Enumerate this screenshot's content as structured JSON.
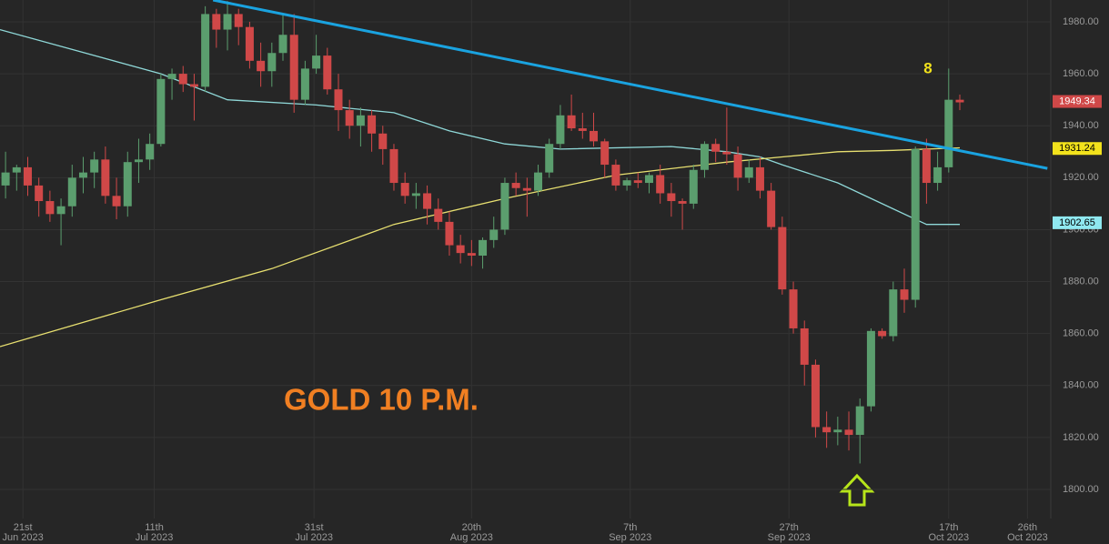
{
  "chart_data": {
    "type": "candlestick",
    "annotations": [
      {
        "text": "GOLD 10 P.M.",
        "color": "#f07f22"
      },
      {
        "text": "8",
        "color": "#f2e21c"
      }
    ],
    "open": [
      1917,
      1922,
      1924,
      1917,
      1911,
      1906,
      1909,
      1920,
      1922,
      1927,
      1913,
      1909,
      1926,
      1927,
      1933,
      1958,
      1960,
      1956,
      1955,
      1983,
      1977,
      1983,
      1978,
      1965,
      1961,
      1968,
      1975,
      1950,
      1962,
      1967,
      1954,
      1946,
      1940,
      1944,
      1937,
      1931,
      1918,
      1913,
      1914,
      1908,
      1903,
      1894,
      1891,
      1890,
      1896,
      1900,
      1918,
      1916,
      1915,
      1922,
      1933,
      1944,
      1939,
      1938,
      1934,
      1925,
      1917,
      1919,
      1918,
      1921,
      1914,
      1911,
      1910,
      1923,
      1933,
      1930,
      1929,
      1920,
      1924,
      1915,
      1901,
      1877,
      1862,
      1848,
      1824,
      1822,
      1823,
      1821,
      1832,
      1861,
      1859,
      1877,
      1873,
      1931,
      1918,
      1924,
      1950
    ],
    "high": [
      1930,
      1925,
      1928,
      1920,
      1915,
      1912,
      1925,
      1928,
      1930,
      1932,
      1920,
      1930,
      1935,
      1937,
      1960,
      1962,
      1963,
      1960,
      1986,
      1985,
      1988,
      1985,
      1980,
      1972,
      1972,
      1983,
      1983,
      1965,
      1975,
      1970,
      1960,
      1950,
      1947,
      1946,
      1940,
      1933,
      1922,
      1918,
      1917,
      1912,
      1907,
      1898,
      1896,
      1897,
      1905,
      1920,
      1922,
      1920,
      1925,
      1935,
      1948,
      1952,
      1945,
      1945,
      1935,
      1927,
      1920,
      1922,
      1922,
      1925,
      1918,
      1912,
      1925,
      1934,
      1935,
      1947,
      1932,
      1927,
      1928,
      1918,
      1905,
      1880,
      1865,
      1850,
      1830,
      1828,
      1830,
      1835,
      1862,
      1862,
      1880,
      1885,
      1932,
      1935,
      1930,
      1962,
      1952
    ],
    "low": [
      1912,
      1915,
      1913,
      1905,
      1903,
      1894,
      1905,
      1914,
      1916,
      1910,
      1904,
      1905,
      1918,
      1923,
      1932,
      1950,
      1953,
      1942,
      1953,
      1970,
      1969,
      1971,
      1962,
      1955,
      1955,
      1965,
      1945,
      1948,
      1960,
      1952,
      1938,
      1935,
      1932,
      1930,
      1925,
      1915,
      1910,
      1908,
      1902,
      1900,
      1890,
      1887,
      1886,
      1885,
      1893,
      1898,
      1913,
      1905,
      1913,
      1920,
      1931,
      1938,
      1935,
      1932,
      1920,
      1915,
      1915,
      1916,
      1914,
      1910,
      1905,
      1900,
      1908,
      1920,
      1926,
      1925,
      1915,
      1918,
      1912,
      1900,
      1875,
      1860,
      1840,
      1820,
      1816,
      1817,
      1815,
      1810,
      1830,
      1858,
      1857,
      1868,
      1870,
      1910,
      1915,
      1922,
      1946
    ],
    "close": [
      1922,
      1924,
      1917,
      1911,
      1906,
      1909,
      1920,
      1922,
      1927,
      1913,
      1909,
      1926,
      1927,
      1933,
      1958,
      1960,
      1956,
      1955,
      1983,
      1977,
      1983,
      1978,
      1965,
      1961,
      1968,
      1975,
      1950,
      1962,
      1967,
      1954,
      1946,
      1940,
      1944,
      1937,
      1931,
      1918,
      1913,
      1914,
      1908,
      1903,
      1894,
      1891,
      1890,
      1896,
      1900,
      1918,
      1916,
      1915,
      1922,
      1933,
      1944,
      1939,
      1938,
      1934,
      1925,
      1917,
      1919,
      1918,
      1921,
      1914,
      1911,
      1910,
      1923,
      1933,
      1930,
      1929,
      1920,
      1924,
      1915,
      1901,
      1877,
      1862,
      1848,
      1824,
      1822,
      1823,
      1821,
      1832,
      1861,
      1859,
      1877,
      1873,
      1931,
      1918,
      1924,
      1950,
      1949
    ],
    "up_color": "#5b9e6e",
    "down_color": "#d04848",
    "moving_averages": [
      {
        "color": "#8fd8d8",
        "x": [
          -0.5,
          14,
          20,
          28,
          35,
          40,
          45,
          50,
          60,
          65,
          68,
          70,
          75,
          80,
          83,
          86
        ],
        "values": [
          1977,
          1960,
          1950,
          1948,
          1945,
          1938,
          1933,
          1931,
          1932,
          1930,
          1928,
          1925,
          1918,
          1908,
          1902,
          1902
        ]
      },
      {
        "color": "#e8e070",
        "x": [
          -0.5,
          14,
          24,
          35,
          45,
          55,
          65,
          70,
          75,
          80,
          86
        ],
        "values": [
          1855,
          1873,
          1885,
          1902,
          1912,
          1921,
          1926,
          1928,
          1930,
          1930.5,
          1931.5
        ]
      }
    ],
    "trendline": {
      "color": "#1aa3e0",
      "x": [
        18.7,
        93.9
      ],
      "values": [
        1988.4,
        1923.6
      ]
    },
    "price_tags": [
      {
        "value": 1949.34,
        "color": "#d04848",
        "text_color": "#ffffff"
      },
      {
        "value": 1931.24,
        "color": "#f2e21c",
        "text_color": "#000000"
      },
      {
        "value": 1902.65,
        "color": "#8fe8f0",
        "text_color": "#000000"
      }
    ],
    "xlim": [
      -0.5,
      94.2
    ],
    "ylim": [
      1788.8,
      1988.4
    ],
    "yticks": [
      {
        "value": 1800,
        "label": "1800.00"
      },
      {
        "value": 1820,
        "label": "1820.00"
      },
      {
        "value": 1840,
        "label": "1840.00"
      },
      {
        "value": 1860,
        "label": "1860.00"
      },
      {
        "value": 1880,
        "label": "1880.00"
      },
      {
        "value": 1900,
        "label": "1900.00"
      },
      {
        "value": 1920,
        "label": "1920.00"
      },
      {
        "value": 1940,
        "label": "1940.00"
      },
      {
        "value": 1960,
        "label": "1960.00"
      },
      {
        "value": 1980,
        "label": "1980.00"
      }
    ],
    "xticks": [
      {
        "value": 1.56,
        "label": [
          "21st",
          "Jun 2023"
        ]
      },
      {
        "value": 13.4,
        "label": [
          "11th",
          "Jul 2023"
        ]
      },
      {
        "value": 27.8,
        "label": [
          "31st",
          "Jul 2023"
        ]
      },
      {
        "value": 42,
        "label": [
          "20th",
          "Aug 2023"
        ]
      },
      {
        "value": 56.3,
        "label": [
          "7th",
          "Sep 2023"
        ]
      },
      {
        "value": 70.6,
        "label": [
          "27th",
          "Sep 2023"
        ]
      },
      {
        "value": 85,
        "label": [
          "17th",
          "Oct 2023"
        ]
      },
      {
        "value": 92.1,
        "label": [
          "26th",
          "Oct 2023"
        ]
      }
    ],
    "grid": true
  }
}
